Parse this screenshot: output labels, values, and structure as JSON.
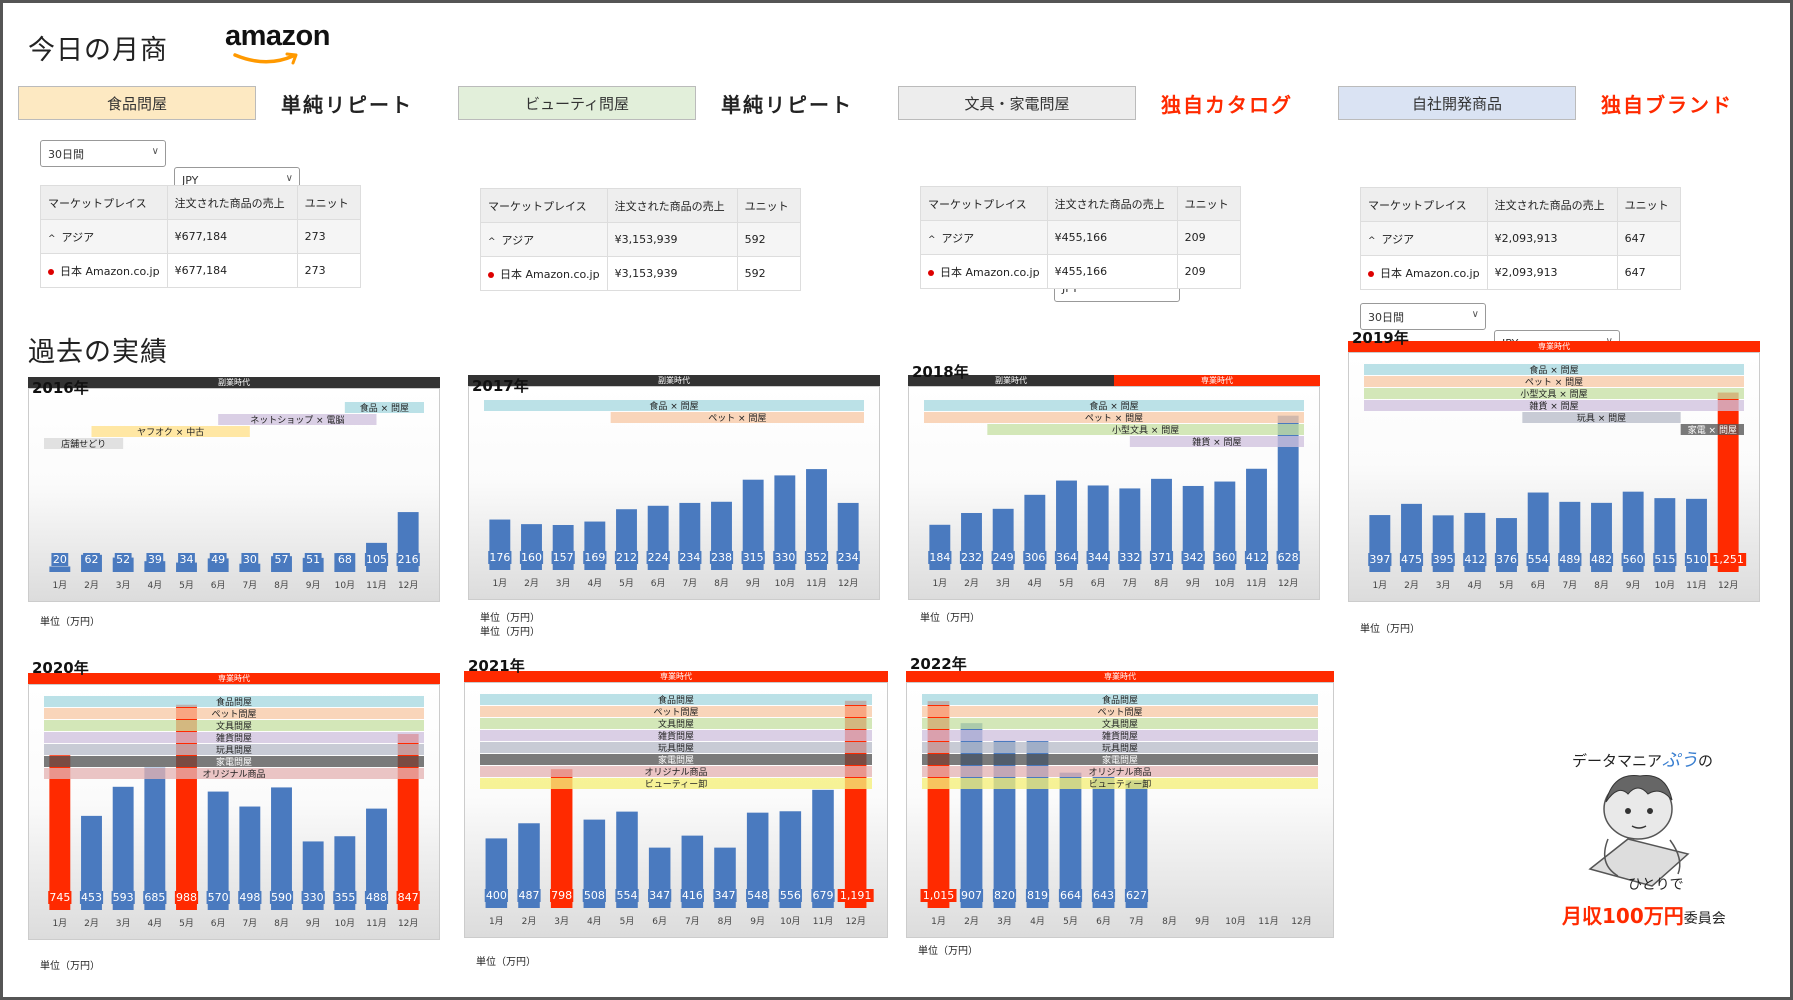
{
  "header": {
    "title": "今日の月商",
    "logo_text": "amazon"
  },
  "categories": [
    {
      "name": "食品問屋",
      "label": "単純リピート",
      "color": "#fde9c2",
      "label_color": "#222222"
    },
    {
      "name": "ビューティ問屋",
      "label": "単純リピート",
      "color": "#e2efda",
      "label_color": "#222222"
    },
    {
      "name": "文具・家電問屋",
      "label": "独自カタログ",
      "color": "#ededed",
      "label_color": "#ff2a00"
    },
    {
      "name": "自社開発商品",
      "label": "独自ブランド",
      "color": "#dae3f3",
      "label_color": "#ff2a00"
    }
  ],
  "filters": {
    "period": "30日間",
    "currency": "JPY"
  },
  "table_headers": [
    "マーケットプレイス",
    "注文された商品の売上",
    "ユニット"
  ],
  "sales_tables": [
    {
      "region": "アジア",
      "region_sales": "¥677,184",
      "region_units": "273",
      "market": "日本 Amazon.co.jp",
      "market_sales": "¥677,184",
      "market_units": "273"
    },
    {
      "region": "アジア",
      "region_sales": "¥3,153,939",
      "region_units": "592",
      "market": "日本 Amazon.co.jp",
      "market_sales": "¥3,153,939",
      "market_units": "592"
    },
    {
      "region": "アジア",
      "region_sales": "¥455,166",
      "region_units": "209",
      "market": "日本 Amazon.co.jp",
      "market_sales": "¥455,166",
      "market_units": "209"
    },
    {
      "region": "アジア",
      "region_sales": "¥2,093,913",
      "region_units": "647",
      "market": "日本 Amazon.co.jp",
      "market_sales": "¥2,093,913",
      "market_units": "647"
    }
  ],
  "section_title": "過去の実績",
  "unit_label": "単位（万円）",
  "month_labels": [
    "1月",
    "2月",
    "3月",
    "4月",
    "5月",
    "6月",
    "7月",
    "8月",
    "9月",
    "10月",
    "11月",
    "12月"
  ],
  "era_labels": {
    "side": "副業時代",
    "full": "専業時代"
  },
  "colors": {
    "bar": "#4a7abf",
    "highlight": "#ff2a00",
    "dark": "#333333"
  },
  "mascot": {
    "line1_pre": "データマニア",
    "line1_accent": "ぷう",
    "line1_post": "の",
    "line2": "ひとりで",
    "line3_accent": "月収100万円",
    "line3_post": "委員会"
  },
  "chart_data": [
    {
      "type": "bar",
      "year": "2016年",
      "categories": [
        "1月",
        "2月",
        "3月",
        "4月",
        "5月",
        "6月",
        "7月",
        "8月",
        "9月",
        "10月",
        "11月",
        "12月"
      ],
      "values": [
        20,
        62,
        52,
        39,
        34,
        49,
        30,
        57,
        51,
        68,
        105,
        216
      ],
      "ylim": [
        0,
        620
      ],
      "highlight": [],
      "eras": [
        {
          "label": "副業時代",
          "start": 0,
          "end": 12,
          "dark": true
        }
      ],
      "bands": [
        {
          "label": "食品 × 問屋",
          "start": 9.5,
          "end": 12,
          "color": "#a8d8e0"
        },
        {
          "label": "ネットショップ × 電脳",
          "start": 5.5,
          "end": 10.5,
          "color": "#cfc1de"
        },
        {
          "label": "ヤフオク × 中古",
          "start": 1.5,
          "end": 6.5,
          "color": "#ffe08a"
        },
        {
          "label": "店舗せどり",
          "start": 0,
          "end": 2.5,
          "color": "#d9d9d9"
        }
      ]
    },
    {
      "type": "bar",
      "year": "2017年",
      "categories": [
        "1月",
        "2月",
        "3月",
        "4月",
        "5月",
        "6月",
        "7月",
        "8月",
        "9月",
        "10月",
        "11月",
        "12月"
      ],
      "values": [
        176,
        160,
        157,
        169,
        212,
        224,
        234,
        238,
        315,
        330,
        352,
        234
      ],
      "ylim": [
        0,
        600
      ],
      "highlight": [],
      "eras": [
        {
          "label": "副業時代",
          "start": 0,
          "end": 12,
          "dark": true
        }
      ],
      "bands": [
        {
          "label": "食品 × 問屋",
          "start": 0,
          "end": 12,
          "color": "#a8d8e0"
        },
        {
          "label": "ペット × 問屋",
          "start": 4,
          "end": 12,
          "color": "#f7c9a6"
        }
      ]
    },
    {
      "type": "bar",
      "year": "2018年",
      "categories": [
        "1月",
        "2月",
        "3月",
        "4月",
        "5月",
        "6月",
        "7月",
        "8月",
        "9月",
        "10月",
        "11月",
        "12月"
      ],
      "values": [
        184,
        232,
        249,
        306,
        364,
        344,
        332,
        371,
        342,
        360,
        412,
        628
      ],
      "ylim": [
        0,
        700
      ],
      "highlight": [],
      "eras": [
        {
          "label": "副業時代",
          "start": 0,
          "end": 6,
          "dark": true
        },
        {
          "label": "専業時代",
          "start": 6,
          "end": 12,
          "dark": false
        }
      ],
      "bands": [
        {
          "label": "食品 × 問屋",
          "start": 0,
          "end": 12,
          "color": "#a8d8e0"
        },
        {
          "label": "ペット × 問屋",
          "start": 0,
          "end": 12,
          "color": "#f7c9a6"
        },
        {
          "label": "小型文具 × 問屋",
          "start": 2,
          "end": 12,
          "color": "#c6e0a4"
        },
        {
          "label": "雑貨 × 問屋",
          "start": 6.5,
          "end": 12,
          "color": "#cfc1de"
        }
      ]
    },
    {
      "type": "bar",
      "year": "2019年",
      "categories": [
        "1月",
        "2月",
        "3月",
        "4月",
        "5月",
        "6月",
        "7月",
        "8月",
        "9月",
        "10月",
        "11月",
        "12月"
      ],
      "values": [
        397,
        475,
        395,
        412,
        376,
        554,
        489,
        482,
        560,
        515,
        510,
        1251
      ],
      "ylim": [
        0,
        1450
      ],
      "highlight": [
        11
      ],
      "eras": [
        {
          "label": "専業時代",
          "start": 0,
          "end": 12,
          "dark": false
        }
      ],
      "bands": [
        {
          "label": "食品 × 問屋",
          "start": 0,
          "end": 12,
          "color": "#a8d8e0"
        },
        {
          "label": "ペット × 問屋",
          "start": 0,
          "end": 12,
          "color": "#f7c9a6"
        },
        {
          "label": "小型文具 × 問屋",
          "start": 0,
          "end": 12,
          "color": "#c6e0a4"
        },
        {
          "label": "雑貨 × 問屋",
          "start": 0,
          "end": 12,
          "color": "#cfc1de"
        },
        {
          "label": "玩具 × 問屋",
          "start": 5,
          "end": 10,
          "color": "#b9bcc9"
        },
        {
          "label": "家電 × 問屋",
          "start": 10,
          "end": 12,
          "color": "#555555"
        }
      ]
    },
    {
      "type": "bar",
      "year": "2020年",
      "categories": [
        "1月",
        "2月",
        "3月",
        "4月",
        "5月",
        "6月",
        "7月",
        "8月",
        "9月",
        "10月",
        "11月",
        "12月"
      ],
      "values": [
        745,
        453,
        593,
        685,
        988,
        570,
        498,
        590,
        330,
        355,
        488,
        847
      ],
      "ylim": [
        0,
        1030
      ],
      "highlight": [
        0,
        4,
        11
      ],
      "eras": [
        {
          "label": "専業時代",
          "start": 0,
          "end": 12,
          "dark": false
        }
      ],
      "bands": [
        {
          "label": "食品問屋",
          "start": 0,
          "end": 12,
          "color": "#a8d8e0"
        },
        {
          "label": "ペット問屋",
          "start": 0,
          "end": 12,
          "color": "#f7c9a6"
        },
        {
          "label": "文具問屋",
          "start": 0,
          "end": 12,
          "color": "#c6e0a4"
        },
        {
          "label": "雑貨問屋",
          "start": 0,
          "end": 12,
          "color": "#cfc1de"
        },
        {
          "label": "玩具問屋",
          "start": 0,
          "end": 12,
          "color": "#b9bcc9"
        },
        {
          "label": "家電問屋",
          "start": 0,
          "end": 12,
          "color": "#555555"
        },
        {
          "label": "オリジナル商品",
          "start": 0,
          "end": 12,
          "color": "#e4b4b4"
        }
      ]
    },
    {
      "type": "bar",
      "year": "2021年",
      "categories": [
        "1月",
        "2月",
        "3月",
        "4月",
        "5月",
        "6月",
        "7月",
        "8月",
        "9月",
        "10月",
        "11月",
        "12月"
      ],
      "values": [
        400,
        487,
        798,
        508,
        554,
        347,
        416,
        347,
        548,
        556,
        679,
        1191
      ],
      "ylim": [
        0,
        1230
      ],
      "highlight": [
        2,
        11
      ],
      "eras": [
        {
          "label": "専業時代",
          "start": 0,
          "end": 12,
          "dark": false
        }
      ],
      "bands": [
        {
          "label": "食品問屋",
          "start": 0,
          "end": 12,
          "color": "#a8d8e0"
        },
        {
          "label": "ペット問屋",
          "start": 0,
          "end": 12,
          "color": "#f7c9a6"
        },
        {
          "label": "文具問屋",
          "start": 0,
          "end": 12,
          "color": "#c6e0a4"
        },
        {
          "label": "雑貨問屋",
          "start": 0,
          "end": 12,
          "color": "#cfc1de"
        },
        {
          "label": "玩具問屋",
          "start": 0,
          "end": 12,
          "color": "#b9bcc9"
        },
        {
          "label": "家電問屋",
          "start": 0,
          "end": 12,
          "color": "#555555"
        },
        {
          "label": "オリジナル商品",
          "start": 0,
          "end": 12,
          "color": "#e4b4b4"
        },
        {
          "label": "ビューティー卸",
          "start": 0,
          "end": 12,
          "color": "#f5f07a"
        }
      ]
    },
    {
      "type": "bar",
      "year": "2022年",
      "categories": [
        "1月",
        "2月",
        "3月",
        "4月",
        "5月",
        "6月",
        "7月",
        "8月",
        "9月",
        "10月",
        "11月",
        "12月"
      ],
      "values": [
        1015,
        907,
        820,
        819,
        664,
        643,
        627,
        null,
        null,
        null,
        null,
        null
      ],
      "ylim": [
        0,
        1050
      ],
      "highlight": [
        0
      ],
      "eras": [
        {
          "label": "専業時代",
          "start": 0,
          "end": 12,
          "dark": false
        }
      ],
      "bands": [
        {
          "label": "食品問屋",
          "start": 0,
          "end": 12,
          "color": "#a8d8e0"
        },
        {
          "label": "ペット問屋",
          "start": 0,
          "end": 12,
          "color": "#f7c9a6"
        },
        {
          "label": "文具問屋",
          "start": 0,
          "end": 12,
          "color": "#c6e0a4"
        },
        {
          "label": "雑貨問屋",
          "start": 0,
          "end": 12,
          "color": "#cfc1de"
        },
        {
          "label": "玩具問屋",
          "start": 0,
          "end": 12,
          "color": "#b9bcc9"
        },
        {
          "label": "家電問屋",
          "start": 0,
          "end": 12,
          "color": "#555555"
        },
        {
          "label": "オリジナル商品",
          "start": 0,
          "end": 12,
          "color": "#e4b4b4"
        },
        {
          "label": "ビューティー卸",
          "start": 0,
          "end": 12,
          "color": "#f5f07a"
        }
      ]
    }
  ]
}
